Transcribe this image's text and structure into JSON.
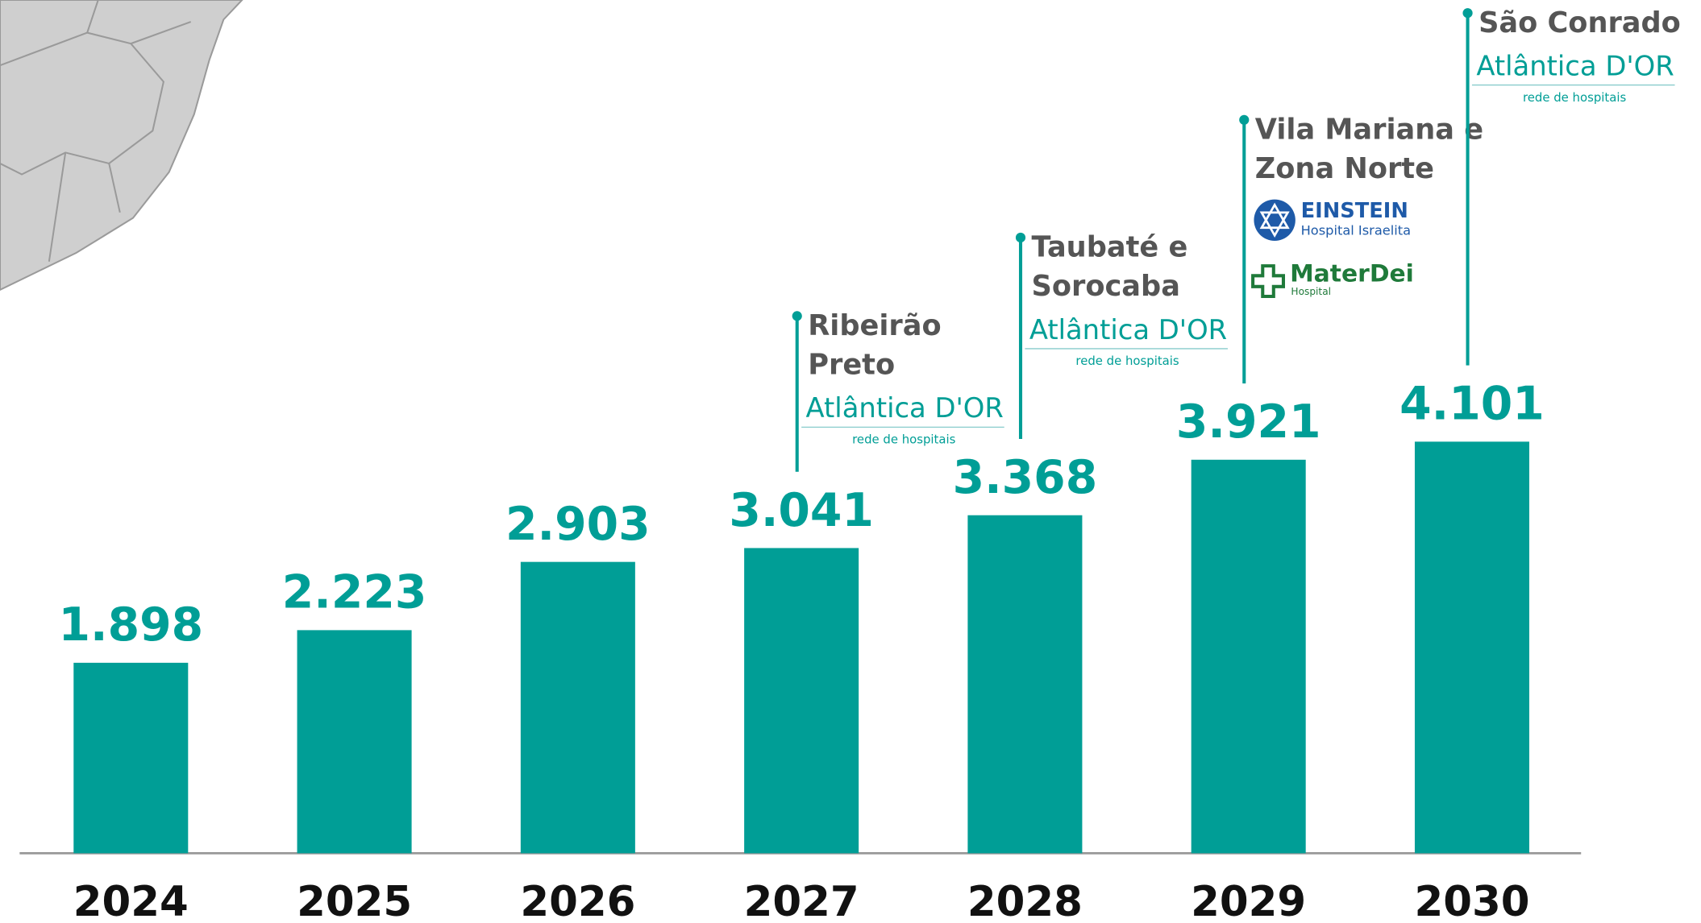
{
  "chart_data": {
    "type": "bar",
    "categories": [
      "2024",
      "2025",
      "2026",
      "2027",
      "2028",
      "2029",
      "2030"
    ],
    "values": [
      1898,
      2223,
      2903,
      3041,
      3368,
      3921,
      4101
    ],
    "value_labels": [
      "1.898",
      "2.223",
      "2.903",
      "3.041",
      "3.368",
      "3.921",
      "4.101"
    ],
    "color": "#009e96",
    "annotations": [
      null,
      null,
      null,
      {
        "lines": [
          "Ribeirão",
          "Preto"
        ],
        "logos": [
          {
            "name": "Atlântica D'OR",
            "tagline": "rede de hospitais"
          }
        ]
      },
      {
        "lines": [
          "Taubaté e",
          "Sorocaba"
        ],
        "logos": [
          {
            "name": "Atlântica D'OR",
            "tagline": "rede de hospitais"
          }
        ]
      },
      {
        "lines": [
          "Vila Mariana e",
          "Zona Norte"
        ],
        "logos": [
          {
            "name": "EINSTEIN",
            "tagline": "Hospital Israelita"
          },
          {
            "name": "MaterDei",
            "tagline": "Hospital"
          }
        ]
      },
      {
        "lines": [
          "São Conrado"
        ],
        "logos": [
          {
            "name": "Atlântica D'OR",
            "tagline": "rede de hospitais"
          }
        ]
      }
    ]
  }
}
